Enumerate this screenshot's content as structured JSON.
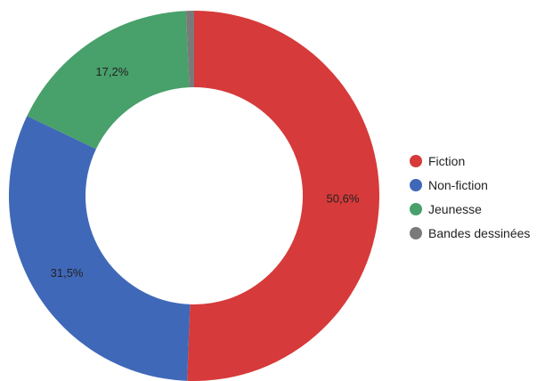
{
  "chart_data": {
    "type": "pie",
    "donut": true,
    "legend_position": "right",
    "slices": [
      {
        "label": "Fiction",
        "value": 50.6,
        "display": "50,6%",
        "color": "#d63a3a"
      },
      {
        "label": "Non-fiction",
        "value": 31.5,
        "display": "31,5%",
        "color": "#4068b8"
      },
      {
        "label": "Jeunesse",
        "value": 17.2,
        "display": "17,2%",
        "color": "#48a06a"
      },
      {
        "label": "Bandes dessinées",
        "value": 0.7,
        "display": "",
        "color": "#7a7a7a"
      }
    ]
  }
}
